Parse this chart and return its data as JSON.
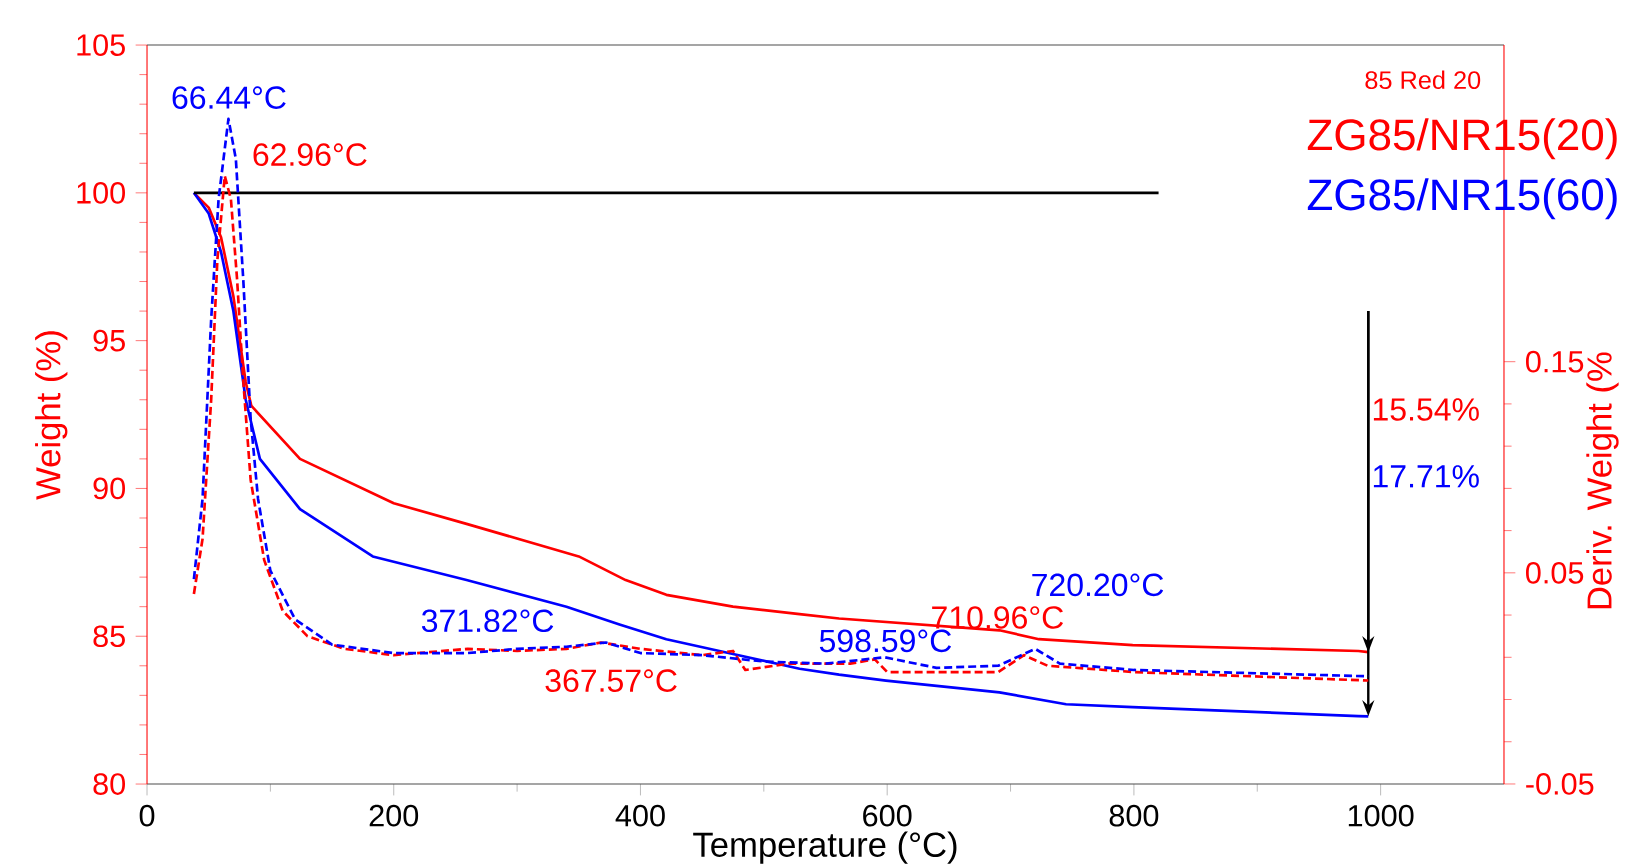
{
  "chart_data": {
    "type": "line",
    "xlabel": "Temperature (°C)",
    "ylabel": "Weight (%)",
    "y2label": "Deriv. Weight (%",
    "xlim": [
      0,
      1100
    ],
    "ylim": [
      80,
      105
    ],
    "y2lim": [
      -0.05,
      0.3
    ],
    "xticks": [
      0,
      200,
      400,
      600,
      800,
      1000
    ],
    "yticks": [
      80,
      85,
      90,
      95,
      100,
      105
    ],
    "y2ticks": [
      -0.05,
      0.05,
      0.15
    ],
    "legend": "top right",
    "series": [
      {
        "name": "ZG85/NR15(20)",
        "color": "#ff0000",
        "x": [
          38,
          50,
          60,
          70,
          80,
          84.5,
          124,
          200,
          259,
          350,
          388,
          421,
          475,
          529,
          561,
          691,
          723,
          799,
          982,
          990
        ],
        "values": [
          100,
          99.5,
          98.5,
          96.5,
          93.6,
          92.8,
          91.0,
          89.5,
          88.8,
          87.7,
          86.9,
          86.4,
          86.0,
          85.75,
          85.6,
          85.2,
          84.9,
          84.7,
          84.5,
          84.46
        ]
      },
      {
        "name": "ZG85/NR15(60)",
        "color": "#0000ff",
        "x": [
          38,
          50,
          60,
          70,
          80,
          91.5,
          124,
          183,
          259,
          340,
          383,
          421,
          475,
          529,
          561,
          599,
          691,
          745,
          799,
          982,
          990
        ],
        "values": [
          100,
          99.3,
          98,
          96,
          93,
          91,
          89.3,
          87.7,
          86.9,
          86.0,
          85.4,
          84.9,
          84.4,
          83.9,
          83.7,
          83.5,
          83.1,
          82.7,
          82.6,
          82.3,
          82.29
        ]
      },
      {
        "color": "#ff0000",
        "axis": "y2",
        "line_style": "dashed",
        "x": [
          38,
          45,
          52,
          57,
          63,
          68,
          73,
          78,
          84,
          95,
          110,
          130,
          160,
          200,
          260,
          300,
          340,
          368,
          400,
          450,
          475,
          485,
          520,
          570,
          590,
          600,
          620,
          690,
          711,
          730,
          800,
          990
        ],
        "values": [
          0.04,
          0.066,
          0.132,
          0.198,
          0.238,
          0.227,
          0.189,
          0.141,
          0.094,
          0.056,
          0.032,
          0.02,
          0.014,
          0.011,
          0.014,
          0.013,
          0.014,
          0.017,
          0.014,
          0.011,
          0.013,
          0.004,
          0.007,
          0.007,
          0.009,
          0.003,
          0.003,
          0.003,
          0.011,
          0.006,
          0.003,
          -0.001
        ]
      },
      {
        "color": "#0000ff",
        "axis": "y2",
        "line_style": "dashed",
        "x": [
          38,
          45,
          52,
          58,
          66,
          72,
          78,
          84,
          90,
          100,
          120,
          150,
          200,
          260,
          300,
          340,
          372,
          400,
          450,
          500,
          550,
          598,
          640,
          690,
          720,
          740,
          800,
          990
        ],
        "values": [
          0.047,
          0.085,
          0.17,
          0.227,
          0.265,
          0.246,
          0.189,
          0.123,
          0.085,
          0.051,
          0.028,
          0.016,
          0.012,
          0.012,
          0.014,
          0.015,
          0.017,
          0.012,
          0.011,
          0.008,
          0.007,
          0.01,
          0.005,
          0.006,
          0.014,
          0.007,
          0.004,
          0.001
        ]
      },
      {
        "color": "#000000",
        "x": [
          38,
          820
        ],
        "values": [
          100,
          100
        ]
      }
    ],
    "annotations": [
      "85 Red 20",
      {
        "text": "66.44°C",
        "x": 66.44,
        "y": 102.46
      },
      {
        "text": "62.96°C",
        "x": 62.96,
        "y": 100.57
      },
      {
        "text": "371.82°C",
        "x": 371.82,
        "y": 84.8
      },
      {
        "text": "367.57°C",
        "x": 367.57,
        "y": 84.8
      },
      {
        "text": "598.59°C",
        "x": 598.59,
        "y": 84.26
      },
      {
        "text": "710.96°C",
        "x": 710.96,
        "y": 84.33
      },
      {
        "text": "720.20°C",
        "x": 720.2,
        "y": 84.53
      },
      "15.54%",
      "17.71%"
    ]
  }
}
